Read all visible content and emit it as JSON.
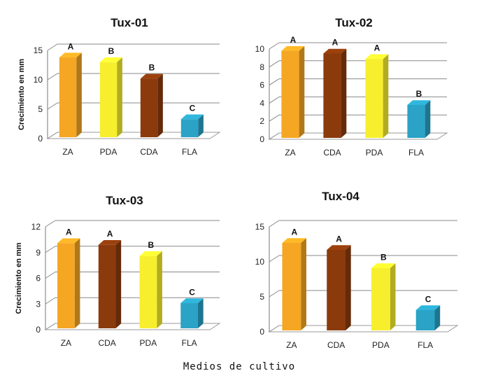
{
  "chart_data": [
    {
      "type": "bar",
      "title": "Tux-01",
      "ylabel": "Crecimiento en mm",
      "categories": [
        "ZA",
        "PDA",
        "CDA",
        "FLA"
      ],
      "values": [
        13.8,
        13.0,
        10.2,
        3.3
      ],
      "significance": [
        "A",
        "B",
        "B",
        "C"
      ],
      "colors": [
        "#f5a623",
        "#f7ef2e",
        "#8b3a0c",
        "#2aa3c6"
      ],
      "ylim": [
        0,
        15
      ],
      "yticks": [
        0,
        5,
        10,
        15
      ],
      "grid": true
    },
    {
      "type": "bar",
      "title": "Tux-02",
      "ylabel": "",
      "categories": [
        "ZA",
        "CDA",
        "PDA",
        "FLA"
      ],
      "values": [
        9.8,
        9.5,
        8.9,
        3.8
      ],
      "significance": [
        "A",
        "A",
        "A",
        "B"
      ],
      "colors": [
        "#f5a623",
        "#8b3a0c",
        "#f7ef2e",
        "#2aa3c6"
      ],
      "ylim": [
        0,
        10
      ],
      "yticks": [
        0,
        2,
        4,
        6,
        8,
        10
      ],
      "grid": true
    },
    {
      "type": "bar",
      "title": "Tux-03",
      "ylabel": "Crecimiento en mm",
      "categories": [
        "ZA",
        "CDA",
        "PDA",
        "FLA"
      ],
      "values": [
        10.1,
        9.9,
        8.6,
        3.1
      ],
      "significance": [
        "A",
        "A",
        "B",
        "C"
      ],
      "colors": [
        "#f5a623",
        "#8b3a0c",
        "#f7ef2e",
        "#2aa3c6"
      ],
      "ylim": [
        0,
        12
      ],
      "yticks": [
        0,
        3,
        6,
        9,
        12
      ],
      "grid": true
    },
    {
      "type": "bar",
      "title": "Tux-04",
      "ylabel": "",
      "categories": [
        "ZA",
        "CDA",
        "PDA",
        "FLA"
      ],
      "values": [
        12.7,
        11.7,
        9.1,
        3.1
      ],
      "significance": [
        "A",
        "A",
        "B",
        "C"
      ],
      "colors": [
        "#f5a623",
        "#8b3a0c",
        "#f7ef2e",
        "#2aa3c6"
      ],
      "ylim": [
        0,
        15
      ],
      "yticks": [
        0,
        5,
        10,
        15
      ],
      "grid": true
    }
  ],
  "figure": {
    "xlabel": "Medios de cultivo"
  }
}
